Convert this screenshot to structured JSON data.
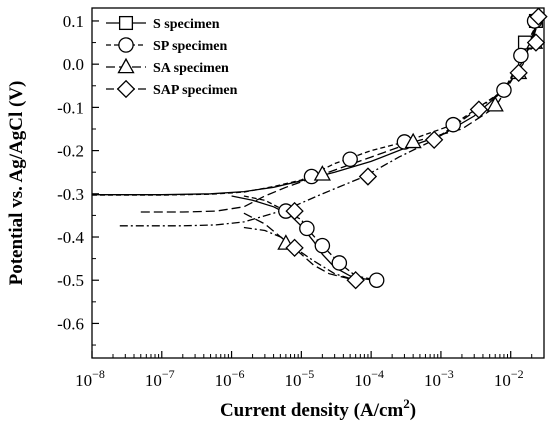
{
  "chart_data": {
    "type": "line",
    "xlabel": "Current density (A/cm",
    "xlabel_sup": "2",
    "xlabel_close": ")",
    "ylabel": "Potential vs. Ag/AgCl (V)",
    "xscale": "log",
    "xlim": [
      1e-08,
      0.03
    ],
    "ylim": [
      -0.68,
      0.13
    ],
    "xticks": [
      {
        "value": 1e-08,
        "base": "10",
        "exp": "−8"
      },
      {
        "value": 1e-07,
        "base": "10",
        "exp": "−7"
      },
      {
        "value": 1e-06,
        "base": "10",
        "exp": "−6"
      },
      {
        "value": 1e-05,
        "base": "10",
        "exp": "−5"
      },
      {
        "value": 0.0001,
        "base": "10",
        "exp": "−4"
      },
      {
        "value": 0.001,
        "base": "10",
        "exp": "−3"
      },
      {
        "value": 0.01,
        "base": "10",
        "exp": "−2"
      }
    ],
    "yticks": [
      {
        "value": 0.1,
        "label": "0.1"
      },
      {
        "value": 0.0,
        "label": "0.0"
      },
      {
        "value": -0.1,
        "label": "-0.1"
      },
      {
        "value": -0.2,
        "label": "-0.2"
      },
      {
        "value": -0.3,
        "label": "-0.3"
      },
      {
        "value": -0.4,
        "label": "-0.4"
      },
      {
        "value": -0.5,
        "label": "-0.5"
      },
      {
        "value": -0.6,
        "label": "-0.6"
      }
    ],
    "legend_position": "top-left",
    "grid": false,
    "series": [
      {
        "name": "S specimen",
        "marker": "square",
        "dash": "solid",
        "anodic": [
          [
            1e-08,
            -0.302
          ],
          [
            1e-07,
            -0.302
          ],
          [
            5e-07,
            -0.3
          ],
          [
            1.5e-06,
            -0.295
          ],
          [
            4e-06,
            -0.285
          ],
          [
            1e-05,
            -0.27
          ],
          [
            3e-05,
            -0.25
          ],
          [
            0.0001,
            -0.225
          ],
          [
            0.0003,
            -0.195
          ],
          [
            0.001,
            -0.165
          ],
          [
            0.003,
            -0.12
          ],
          [
            0.008,
            -0.06
          ],
          [
            0.015,
            0.0
          ],
          [
            0.02,
            0.06
          ],
          [
            0.025,
            0.11
          ]
        ],
        "cathodic": [
          [
            1e-06,
            -0.305
          ],
          [
            2e-06,
            -0.315
          ],
          [
            4e-06,
            -0.33
          ],
          [
            7e-06,
            -0.35
          ],
          [
            1e-05,
            -0.375
          ],
          [
            1.5e-05,
            -0.41
          ],
          [
            2e-05,
            -0.44
          ],
          [
            3e-05,
            -0.47
          ],
          [
            5e-05,
            -0.49
          ],
          [
            8e-05,
            -0.497
          ],
          [
            0.00011,
            -0.5
          ]
        ],
        "markers": [
          [
            0.016,
            0.05
          ],
          [
            0.023,
            0.1
          ]
        ]
      },
      {
        "name": "SP specimen",
        "marker": "circle",
        "dash": "short-dash",
        "anodic": [
          [
            1e-08,
            -0.303
          ],
          [
            1e-07,
            -0.303
          ],
          [
            5e-07,
            -0.301
          ],
          [
            1.5e-06,
            -0.296
          ],
          [
            4e-06,
            -0.283
          ],
          [
            1e-05,
            -0.268
          ],
          [
            3e-05,
            -0.23
          ],
          [
            0.0001,
            -0.2
          ],
          [
            0.0003,
            -0.18
          ],
          [
            0.0015,
            -0.14
          ],
          [
            0.008,
            -0.06
          ],
          [
            0.015,
            0.02
          ],
          [
            0.02,
            0.07
          ],
          [
            0.025,
            0.1
          ]
        ],
        "cathodic": [
          [
            1.5e-06,
            -0.305
          ],
          [
            3e-06,
            -0.315
          ],
          [
            6e-06,
            -0.34
          ],
          [
            1e-05,
            -0.36
          ],
          [
            1.2e-05,
            -0.38
          ],
          [
            2e-05,
            -0.42
          ],
          [
            3.5e-05,
            -0.46
          ],
          [
            6e-05,
            -0.49
          ],
          [
            0.00012,
            -0.5
          ]
        ],
        "markers": [
          [
            6e-06,
            -0.34
          ],
          [
            1.2e-05,
            -0.38
          ],
          [
            2e-05,
            -0.42
          ],
          [
            3.5e-05,
            -0.46
          ],
          [
            0.00012,
            -0.5
          ],
          [
            1.4e-05,
            -0.26
          ],
          [
            5e-05,
            -0.22
          ],
          [
            0.0003,
            -0.18
          ],
          [
            0.0015,
            -0.14
          ],
          [
            0.008,
            -0.06
          ],
          [
            0.014,
            0.02
          ],
          [
            0.022,
            0.1
          ]
        ]
      },
      {
        "name": "SA specimen",
        "marker": "triangle",
        "dash": "long-dash",
        "anodic": [
          [
            5e-08,
            -0.342
          ],
          [
            2e-07,
            -0.342
          ],
          [
            6e-07,
            -0.34
          ],
          [
            1.5e-06,
            -0.33
          ],
          [
            3e-06,
            -0.305
          ],
          [
            6e-06,
            -0.285
          ],
          [
            2e-05,
            -0.255
          ],
          [
            0.0001,
            -0.215
          ],
          [
            0.0004,
            -0.18
          ],
          [
            0.002,
            -0.15
          ],
          [
            0.006,
            -0.1
          ],
          [
            0.012,
            -0.02
          ],
          [
            0.02,
            0.05
          ],
          [
            0.025,
            0.1
          ]
        ],
        "cathodic": [
          [
            1.5e-06,
            -0.345
          ],
          [
            3e-06,
            -0.37
          ],
          [
            6e-06,
            -0.41
          ],
          [
            1e-05,
            -0.44
          ],
          [
            1.5e-05,
            -0.465
          ],
          [
            2.5e-05,
            -0.485
          ],
          [
            5e-05,
            -0.497
          ],
          [
            8e-05,
            -0.5
          ]
        ],
        "markers": [
          [
            6e-06,
            -0.415
          ],
          [
            2e-05,
            -0.255
          ],
          [
            0.0004,
            -0.18
          ],
          [
            0.006,
            -0.095
          ],
          [
            0.013,
            -0.02
          ],
          [
            0.022,
            0.05
          ]
        ]
      },
      {
        "name": "SAP specimen",
        "marker": "diamond",
        "dash": "dash-dot",
        "anodic": [
          [
            2.5e-08,
            -0.374
          ],
          [
            2e-07,
            -0.374
          ],
          [
            6e-07,
            -0.372
          ],
          [
            1.5e-06,
            -0.365
          ],
          [
            4e-06,
            -0.345
          ],
          [
            8e-06,
            -0.328
          ],
          [
            2e-05,
            -0.3
          ],
          [
            8e-05,
            -0.26
          ],
          [
            0.00025,
            -0.215
          ],
          [
            0.0008,
            -0.175
          ],
          [
            0.003,
            -0.11
          ],
          [
            0.008,
            -0.06
          ],
          [
            0.013,
            -0.01
          ],
          [
            0.02,
            0.05
          ],
          [
            0.025,
            0.11
          ]
        ],
        "cathodic": [
          [
            1.5e-06,
            -0.378
          ],
          [
            3e-06,
            -0.385
          ],
          [
            6e-06,
            -0.405
          ],
          [
            8e-06,
            -0.425
          ],
          [
            1.5e-05,
            -0.455
          ],
          [
            3e-05,
            -0.485
          ],
          [
            6e-05,
            -0.5
          ]
        ],
        "markers": [
          [
            8e-06,
            -0.34
          ],
          [
            8e-06,
            -0.425
          ],
          [
            6e-05,
            -0.5
          ],
          [
            9e-05,
            -0.26
          ],
          [
            0.0008,
            -0.175
          ],
          [
            0.0035,
            -0.105
          ],
          [
            0.013,
            -0.02
          ],
          [
            0.023,
            0.05
          ],
          [
            0.025,
            0.11
          ]
        ]
      }
    ]
  }
}
